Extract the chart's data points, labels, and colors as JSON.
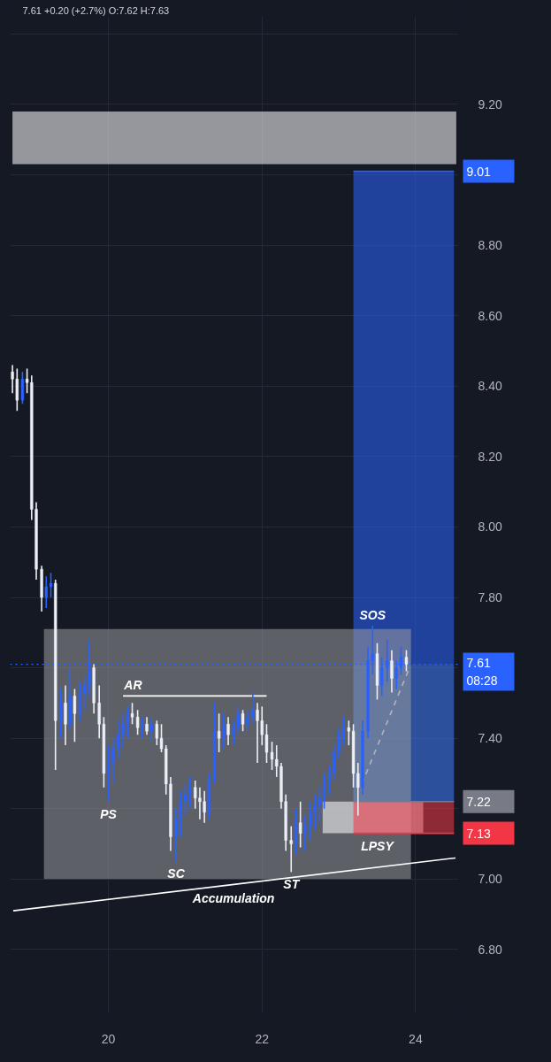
{
  "chart_data": {
    "type": "candlestick",
    "title": "7.61 +0.20 (+2.7%) O:7.62 H:7.63",
    "x": [
      18.75,
      18.81,
      18.88,
      18.94,
      19,
      19.06,
      19.13,
      19.19,
      19.25,
      19.31,
      19.38,
      19.44,
      19.5,
      19.56,
      19.63,
      19.69,
      19.75,
      19.81,
      19.88,
      19.94,
      20,
      20.06,
      20.13,
      20.19,
      20.25,
      20.31,
      20.38,
      20.44,
      20.5,
      20.56,
      20.63,
      20.69,
      20.75,
      20.81,
      20.88,
      20.94,
      21,
      21.06,
      21.13,
      21.19,
      21.25,
      21.31,
      21.38,
      21.44,
      21.5,
      21.56,
      21.63,
      21.69,
      21.75,
      21.81,
      21.88,
      21.94,
      22,
      22.06,
      22.13,
      22.19,
      22.25,
      22.31,
      22.38,
      22.44,
      22.5,
      22.56,
      22.63,
      22.69,
      22.75,
      22.81,
      22.88,
      22.94,
      23,
      23.06,
      23.13,
      23.19,
      23.25,
      23.31,
      23.38,
      23.44,
      23.5,
      23.56,
      23.63,
      23.69,
      23.75,
      23.81,
      23.88
    ],
    "ohlc": [
      [
        8.44,
        8.46,
        8.38,
        8.42
      ],
      [
        8.42,
        8.45,
        8.33,
        8.36
      ],
      [
        8.36,
        8.44,
        8.35,
        8.42
      ],
      [
        8.42,
        8.45,
        8.38,
        8.41
      ],
      [
        8.41,
        8.43,
        8.02,
        8.05
      ],
      [
        8.05,
        8.07,
        7.85,
        7.88
      ],
      [
        7.88,
        7.89,
        7.76,
        7.8
      ],
      [
        7.8,
        7.86,
        7.77,
        7.83
      ],
      [
        7.83,
        7.87,
        7.8,
        7.84
      ],
      [
        7.84,
        7.85,
        7.31,
        7.45
      ],
      [
        7.45,
        7.54,
        7.4,
        7.5
      ],
      [
        7.5,
        7.55,
        7.38,
        7.44
      ],
      [
        7.44,
        7.6,
        7.42,
        7.52
      ],
      [
        7.52,
        7.54,
        7.39,
        7.47
      ],
      [
        7.47,
        7.56,
        7.45,
        7.53
      ],
      [
        7.53,
        7.58,
        7.48,
        7.55
      ],
      [
        7.55,
        7.68,
        7.52,
        7.6
      ],
      [
        7.6,
        7.61,
        7.47,
        7.5
      ],
      [
        7.5,
        7.55,
        7.4,
        7.44
      ],
      [
        7.44,
        7.46,
        7.26,
        7.3
      ],
      [
        7.3,
        7.38,
        7.22,
        7.33
      ],
      [
        7.33,
        7.4,
        7.27,
        7.37
      ],
      [
        7.37,
        7.45,
        7.34,
        7.41
      ],
      [
        7.41,
        7.47,
        7.37,
        7.44
      ],
      [
        7.44,
        7.49,
        7.4,
        7.47
      ],
      [
        7.47,
        7.5,
        7.44,
        7.46
      ],
      [
        7.46,
        7.48,
        7.41,
        7.43
      ],
      [
        7.43,
        7.46,
        7.4,
        7.44
      ],
      [
        7.44,
        7.46,
        7.41,
        7.42
      ],
      [
        7.42,
        7.46,
        7.39,
        7.44
      ],
      [
        7.44,
        7.45,
        7.38,
        7.4
      ],
      [
        7.4,
        7.44,
        7.36,
        7.37
      ],
      [
        7.37,
        7.38,
        7.24,
        7.27
      ],
      [
        7.27,
        7.29,
        7.08,
        7.12
      ],
      [
        7.12,
        7.2,
        7.05,
        7.17
      ],
      [
        7.17,
        7.25,
        7.12,
        7.22
      ],
      [
        7.22,
        7.27,
        7.18,
        7.24
      ],
      [
        7.24,
        7.29,
        7.2,
        7.26
      ],
      [
        7.26,
        7.28,
        7.2,
        7.23
      ],
      [
        7.23,
        7.26,
        7.17,
        7.22
      ],
      [
        7.22,
        7.25,
        7.16,
        7.19
      ],
      [
        7.19,
        7.3,
        7.17,
        7.28
      ],
      [
        7.28,
        7.5,
        7.27,
        7.42
      ],
      [
        7.42,
        7.47,
        7.36,
        7.4
      ],
      [
        7.4,
        7.47,
        7.37,
        7.44
      ],
      [
        7.44,
        7.46,
        7.38,
        7.41
      ],
      [
        7.41,
        7.45,
        7.38,
        7.43
      ],
      [
        7.43,
        7.49,
        7.41,
        7.47
      ],
      [
        7.47,
        7.48,
        7.42,
        7.44
      ],
      [
        7.44,
        7.48,
        7.42,
        7.46
      ],
      [
        7.46,
        7.53,
        7.44,
        7.48
      ],
      [
        7.48,
        7.5,
        7.33,
        7.45
      ],
      [
        7.45,
        7.49,
        7.38,
        7.41
      ],
      [
        7.41,
        7.44,
        7.33,
        7.36
      ],
      [
        7.36,
        7.39,
        7.31,
        7.34
      ],
      [
        7.34,
        7.38,
        7.29,
        7.32
      ],
      [
        7.32,
        7.33,
        7.2,
        7.22
      ],
      [
        7.22,
        7.24,
        7.08,
        7.11
      ],
      [
        7.11,
        7.15,
        7.02,
        7.1
      ],
      [
        7.1,
        7.2,
        7.07,
        7.16
      ],
      [
        7.16,
        7.22,
        7.09,
        7.13
      ],
      [
        7.13,
        7.18,
        7.08,
        7.15
      ],
      [
        7.15,
        7.22,
        7.11,
        7.19
      ],
      [
        7.19,
        7.24,
        7.14,
        7.21
      ],
      [
        7.21,
        7.26,
        7.16,
        7.23
      ],
      [
        7.23,
        7.3,
        7.2,
        7.28
      ],
      [
        7.28,
        7.32,
        7.24,
        7.3
      ],
      [
        7.3,
        7.38,
        7.28,
        7.36
      ],
      [
        7.36,
        7.43,
        7.34,
        7.41
      ],
      [
        7.41,
        7.46,
        7.38,
        7.43
      ],
      [
        7.43,
        7.45,
        7.38,
        7.42
      ],
      [
        7.42,
        7.44,
        7.26,
        7.3
      ],
      [
        7.3,
        7.33,
        7.18,
        7.26
      ],
      [
        7.26,
        7.45,
        7.24,
        7.42
      ],
      [
        7.42,
        7.66,
        7.4,
        7.62
      ],
      [
        7.62,
        7.72,
        7.58,
        7.64
      ],
      [
        7.64,
        7.67,
        7.51,
        7.55
      ],
      [
        7.55,
        7.63,
        7.52,
        7.6
      ],
      [
        7.6,
        7.68,
        7.56,
        7.62
      ],
      [
        7.62,
        7.65,
        7.53,
        7.57
      ],
      [
        7.57,
        7.62,
        7.54,
        7.6
      ],
      [
        7.6,
        7.66,
        7.58,
        7.63
      ],
      [
        7.63,
        7.65,
        7.59,
        7.61
      ]
    ],
    "colors": [
      "#eceff5",
      "#eceff5",
      "#2962ff",
      "#eceff5",
      "#eceff5",
      "#eceff5",
      "#eceff5",
      "#2962ff",
      "#2962ff",
      "#eceff5",
      "#2962ff",
      "#eceff5",
      "#2962ff",
      "#eceff5",
      "#2962ff",
      "#2962ff",
      "#2962ff",
      "#eceff5",
      "#eceff5",
      "#eceff5",
      "#2962ff",
      "#2962ff",
      "#2962ff",
      "#2962ff",
      "#2962ff",
      "#eceff5",
      "#eceff5",
      "#2962ff",
      "#eceff5",
      "#2962ff",
      "#eceff5",
      "#eceff5",
      "#eceff5",
      "#eceff5",
      "#2962ff",
      "#2962ff",
      "#2962ff",
      "#2962ff",
      "#eceff5",
      "#eceff5",
      "#eceff5",
      "#2962ff",
      "#2962ff",
      "#eceff5",
      "#2962ff",
      "#eceff5",
      "#2962ff",
      "#2962ff",
      "#eceff5",
      "#2962ff",
      "#2962ff",
      "#eceff5",
      "#eceff5",
      "#eceff5",
      "#eceff5",
      "#eceff5",
      "#eceff5",
      "#eceff5",
      "#eceff5",
      "#2962ff",
      "#eceff5",
      "#2962ff",
      "#2962ff",
      "#2962ff",
      "#2962ff",
      "#2962ff",
      "#2962ff",
      "#2962ff",
      "#2962ff",
      "#2962ff",
      "#eceff5",
      "#eceff5",
      "#eceff5",
      "#2962ff",
      "#2962ff",
      "#2962ff",
      "#eceff5",
      "#2962ff",
      "#2962ff",
      "#eceff5",
      "#2962ff",
      "#2962ff",
      "#eceff5"
    ],
    "series": [
      {
        "type": "line",
        "x": [
          18.75,
          24.53
        ],
        "values": [
          null,
          null
        ],
        "lower": [
          9.03,
          9.03
        ],
        "upper": [
          9.18,
          9.18
        ],
        "color": "#ffffff"
      },
      {
        "type": "line",
        "x": [
          23.19,
          24.5
        ],
        "values": [
          9.01,
          9.01
        ],
        "lower": [
          7.61,
          7.61
        ],
        "upper": [
          9.01,
          9.01
        ],
        "color": "#2962ff",
        "value_labels": [
          null,
          "9.01"
        ]
      },
      {
        "type": "line",
        "x": [
          23.19,
          24.5
        ],
        "values": [
          null,
          null
        ],
        "lower": [
          7.22,
          7.22
        ],
        "upper": [
          7.61,
          7.61
        ],
        "color": "#3f7dff"
      },
      {
        "type": "line",
        "x": [
          19.16,
          23.94
        ],
        "values": [
          null,
          null
        ],
        "lower": [
          7.0,
          7.0
        ],
        "upper": [
          7.71,
          7.71
        ],
        "color": "#9b9aa0"
      },
      {
        "type": "line",
        "x": [
          22.79,
          24.1
        ],
        "values": [
          null,
          null
        ],
        "lower": [
          7.13,
          7.13
        ],
        "upper": [
          7.22,
          7.22
        ],
        "color": "#ffffff"
      },
      {
        "type": "line",
        "x": [
          23.19,
          24.5
        ],
        "values": [
          7.13,
          7.13
        ],
        "lower": [
          7.13,
          7.13
        ],
        "upper": [
          7.22,
          7.22
        ],
        "color": "#f23645",
        "value_labels": [
          null,
          "7.13"
        ]
      },
      {
        "type": "line",
        "x": [
          23.19,
          24.5
        ],
        "values": [
          7.22,
          7.22
        ],
        "color": "#787b86",
        "value_labels": [
          null,
          "7.22"
        ]
      },
      {
        "type": "line",
        "x": [
          18.76,
          24.52
        ],
        "values": [
          6.91,
          7.06
        ],
        "color": "#ffffff"
      },
      {
        "type": "line",
        "x": [
          20.19,
          22.06
        ],
        "values": [
          7.52,
          7.52
        ],
        "color": "#ffffff"
      },
      {
        "type": "line",
        "x": [
          23.3,
          23.92
        ],
        "values": [
          7.27,
          7.6
        ],
        "color": "#b2b5be",
        "line_style": "dashed"
      }
    ],
    "ref_lines": [
      {
        "axis": "y",
        "value": 7.61,
        "label": "7.61\n08:28",
        "color": "#2962ff",
        "line_style": "dotted"
      }
    ],
    "annotations": [
      {
        "text": "AR",
        "x": 20.32,
        "y": 7.52
      },
      {
        "text": "PS",
        "x": 20,
        "y": 7.22
      },
      {
        "text": "SC",
        "x": 20.88,
        "y": 7.05
      },
      {
        "text": "ST",
        "x": 22.38,
        "y": 7.02
      },
      {
        "text": "SOS",
        "x": 23.44,
        "y": 7.72
      },
      {
        "text": "LPSY",
        "x": 23.5,
        "y": 7.13
      },
      {
        "text": "Accumulation",
        "x": 21.63,
        "y": 6.98
      }
    ],
    "xlim": [
      18.72,
      24.56
    ],
    "ylim": [
      6.62,
      9.45
    ],
    "xticks": [
      20,
      22,
      24
    ],
    "yticks": [
      {
        "value": 9.4,
        "label": null
      },
      {
        "value": 9.2,
        "label": "9.20"
      },
      {
        "value": 9.0,
        "label": null
      },
      {
        "value": 8.8,
        "label": "8.80"
      },
      {
        "value": 8.6,
        "label": "8.60"
      },
      {
        "value": 8.4,
        "label": "8.40"
      },
      {
        "value": 8.2,
        "label": "8.20"
      },
      {
        "value": 8.0,
        "label": "8.00"
      },
      {
        "value": 7.8,
        "label": "7.80"
      },
      {
        "value": 7.6,
        "label": null
      },
      {
        "value": 7.4,
        "label": "7.40"
      },
      {
        "value": 7.2,
        "label": null
      },
      {
        "value": 7.0,
        "label": "7.00"
      },
      {
        "value": 6.8,
        "label": "6.80"
      }
    ],
    "grid": true
  }
}
